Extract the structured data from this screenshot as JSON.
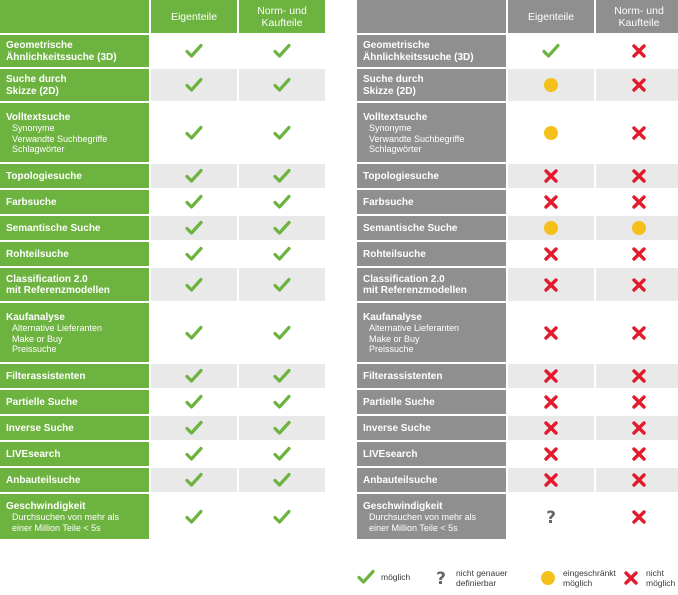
{
  "headers": {
    "eigenteile": "Eigenteile",
    "norm_line1": "Norm- und",
    "norm_line2": "Kaufteile"
  },
  "rows": [
    {
      "label": [
        "Geometrische",
        "Ähnlichkeitssuche (3D)"
      ],
      "sub": [],
      "h": 32,
      "eigen": "check",
      "norm": "check",
      "ext_eigen": "check",
      "ext_norm": "cross"
    },
    {
      "label": [
        "Suche durch",
        "Skizze (2D)"
      ],
      "sub": [],
      "h": 32,
      "eigen": "check",
      "norm": "check",
      "ext_eigen": "partial",
      "ext_norm": "cross"
    },
    {
      "label": [
        "Volltextsuche"
      ],
      "sub": [
        "Synonyme",
        "Verwandte Suchbegriffe",
        "Schlagwörter"
      ],
      "h": 59,
      "eigen": "check",
      "norm": "check",
      "ext_eigen": "partial",
      "ext_norm": "cross"
    },
    {
      "label": [
        "Topologiesuche"
      ],
      "sub": [],
      "h": 24,
      "eigen": "check",
      "norm": "check",
      "ext_eigen": "cross",
      "ext_norm": "cross"
    },
    {
      "label": [
        "Farbsuche"
      ],
      "sub": [],
      "h": 24,
      "eigen": "check",
      "norm": "check",
      "ext_eigen": "cross",
      "ext_norm": "cross"
    },
    {
      "label": [
        "Semantische Suche"
      ],
      "sub": [],
      "h": 24,
      "eigen": "check",
      "norm": "check",
      "ext_eigen": "partial",
      "ext_norm": "partial"
    },
    {
      "label": [
        "Rohteilsuche"
      ],
      "sub": [],
      "h": 24,
      "eigen": "check",
      "norm": "check",
      "ext_eigen": "cross",
      "ext_norm": "cross"
    },
    {
      "label": [
        "Classification 2.0",
        "mit Referenzmodellen"
      ],
      "sub": [],
      "h": 33,
      "eigen": "check",
      "norm": "check",
      "ext_eigen": "cross",
      "ext_norm": "cross"
    },
    {
      "label": [
        "Kaufanalyse"
      ],
      "sub": [
        "Alternative Lieferanten",
        "Make or Buy",
        "Preissuche"
      ],
      "h": 59,
      "eigen": "check",
      "norm": "check",
      "ext_eigen": "cross",
      "ext_norm": "cross"
    },
    {
      "label": [
        "Filterassistenten"
      ],
      "sub": [],
      "h": 24,
      "eigen": "check",
      "norm": "check",
      "ext_eigen": "cross",
      "ext_norm": "cross"
    },
    {
      "label": [
        "Partielle Suche"
      ],
      "sub": [],
      "h": 24,
      "eigen": "check",
      "norm": "check",
      "ext_eigen": "cross",
      "ext_norm": "cross"
    },
    {
      "label": [
        "Inverse Suche"
      ],
      "sub": [],
      "h": 24,
      "eigen": "check",
      "norm": "check",
      "ext_eigen": "cross",
      "ext_norm": "cross"
    },
    {
      "label": [
        "LIVEsearch"
      ],
      "sub": [],
      "h": 24,
      "eigen": "check",
      "norm": "check",
      "ext_eigen": "cross",
      "ext_norm": "cross"
    },
    {
      "label": [
        "Anbauteilsuche"
      ],
      "sub": [],
      "h": 24,
      "eigen": "check",
      "norm": "check",
      "ext_eigen": "cross",
      "ext_norm": "cross"
    },
    {
      "label": [
        "Geschwindigkeit"
      ],
      "sub": [
        "Durchsuchen von mehr als",
        "einer Million Teile < 5s"
      ],
      "h": 45,
      "eigen": "check",
      "norm": "check",
      "ext_eigen": "unknown",
      "ext_norm": "cross"
    }
  ],
  "legend": [
    {
      "icon": "check",
      "lines": [
        "möglich"
      ]
    },
    {
      "icon": "unknown",
      "lines": [
        "nicht genauer",
        "definierbar"
      ]
    },
    {
      "icon": "partial",
      "lines": [
        "eingeschränkt",
        "möglich"
      ]
    },
    {
      "icon": "cross",
      "lines": [
        "nicht",
        "möglich"
      ]
    }
  ],
  "colors": {
    "green_header": "#6db33f",
    "gray_header": "#8f8f8f",
    "check": "#6db33f",
    "cross": "#e21a2c",
    "partial": "#f4c019",
    "unknown": "#666666"
  }
}
